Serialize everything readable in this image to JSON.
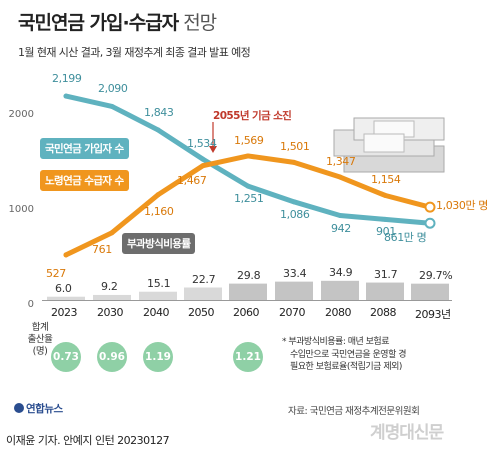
{
  "header": {
    "title_main": "국민연금 가입·수급자",
    "title_light": " 전망",
    "subtitle": "1월 현재 시산 결과, 3월 재정추계 최종 결과 발표 예정"
  },
  "annotation": {
    "exhaustion": "2055년 기금 소진"
  },
  "fertility": {
    "label_lines": [
      "합계",
      "출산율",
      "(명)"
    ],
    "values": [
      {
        "year": "2023",
        "value": "0.73"
      },
      {
        "year": "2030",
        "value": "0.96"
      },
      {
        "year": "2040",
        "value": "1.19"
      },
      {
        "year": "2060",
        "value": "1.21"
      }
    ]
  },
  "footnote": {
    "lines": [
      "* 부과방식비용률: 매년 보험료",
      "수입만으로 국민연금을 운영할 경",
      "필요한 보험료율(적립기금 제외)"
    ]
  },
  "source": "자료: 국민연금 재정추계전문위원회",
  "logo": "연합뉴스",
  "credit": "이재윤 기자. 안예지 인턴  20230127",
  "watermark": "계명대신문",
  "colors": {
    "subscribers": "#5fb2bf",
    "elderly": "#f0961e",
    "ratio": "#d9d9d9",
    "ratio_post_exhaustion": "#c4c4c4",
    "annotation": "#c0392b",
    "fertility": "#8fd0a6"
  },
  "chart_data": {
    "type": "line",
    "x": [
      "2023",
      "2030",
      "2040",
      "2050",
      "2060",
      "2070",
      "2080",
      "2088",
      "2093"
    ],
    "x_tick_labels": [
      "2023",
      "2030",
      "2040",
      "2050",
      "2060",
      "2070",
      "2080",
      "2088",
      "2093년"
    ],
    "ylim": [
      0,
      2200
    ],
    "y_ticks": [
      0,
      1000,
      2000
    ],
    "y_tick_labels": [
      "0",
      "1000",
      "2000"
    ],
    "grid": false,
    "series": [
      {
        "name": "국민연금 가입자 수",
        "unit": "만 명",
        "values": [
          2199,
          2090,
          1843,
          1534,
          1251,
          1086,
          942,
          901,
          861
        ],
        "labels": [
          "2,199",
          "2,090",
          "1,843",
          "1,534",
          "1,251",
          "1,086",
          "942",
          "901",
          "861만 명"
        ]
      },
      {
        "name": "노령연금 수급자 수",
        "unit": "만 명",
        "values": [
          527,
          761,
          1160,
          1467,
          1569,
          1501,
          1347,
          1154,
          1030
        ],
        "labels": [
          "527",
          "761",
          "1,160",
          "1,467",
          "1,569",
          "1,501",
          "1,347",
          "1,154",
          "1,030만 명"
        ]
      }
    ],
    "bar_series": {
      "name": "부과방식비용률",
      "unit": "%",
      "values": [
        6.0,
        9.2,
        15.1,
        22.7,
        29.8,
        33.4,
        34.9,
        31.7,
        29.7
      ],
      "labels": [
        "6.0",
        "9.2",
        "15.1",
        "22.7",
        "29.8",
        "33.4",
        "34.9",
        "31.7",
        "29.7%"
      ]
    }
  }
}
